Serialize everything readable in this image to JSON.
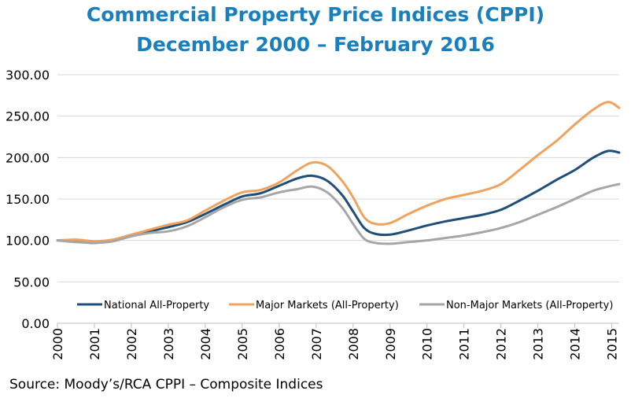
{
  "title_line1": "Commercial Property Price Indices (CPPI)",
  "title_line2": "December 2000 – February 2016",
  "source": "Source: Moody’s/RCA CPPI – Composite Indices",
  "chart_data": {
    "type": "line",
    "title": "Commercial Property Price Indices (CPPI) December 2000 – February 2016",
    "xlabel": "",
    "ylabel": "",
    "xlim": [
      2000,
      2015.2
    ],
    "ylim": [
      0,
      300
    ],
    "yticks": [
      "0.00",
      "50.00",
      "100.00",
      "150.00",
      "200.00",
      "250.00",
      "300.00"
    ],
    "yticks_values": [
      0,
      50,
      100,
      150,
      200,
      250,
      300
    ],
    "xticks": [
      "2000",
      "2001",
      "2002",
      "2003",
      "2004",
      "2005",
      "2006",
      "2007",
      "2008",
      "2009",
      "2010",
      "2011",
      "2012",
      "2013",
      "2014",
      "2015"
    ],
    "grid": "horizontal",
    "legend_position": "bottom-inside",
    "series": [
      {
        "name": "National All-Property",
        "color": "#1f4e79",
        "x": [
          2000,
          2000.5,
          2001,
          2001.5,
          2002,
          2002.5,
          2003,
          2003.5,
          2004,
          2004.5,
          2005,
          2005.5,
          2006,
          2006.5,
          2006.9,
          2007.3,
          2007.7,
          2008,
          2008.3,
          2008.6,
          2009,
          2009.5,
          2010,
          2010.5,
          2011,
          2011.5,
          2012,
          2012.5,
          2013,
          2013.5,
          2014,
          2014.5,
          2014.9,
          2015.2
        ],
        "values": [
          100,
          99,
          97,
          100,
          106,
          111,
          116,
          122,
          132,
          143,
          153,
          157,
          166,
          175,
          178,
          172,
          155,
          135,
          115,
          108,
          107,
          112,
          118,
          123,
          127,
          131,
          137,
          148,
          160,
          173,
          185,
          200,
          208,
          206
        ]
      },
      {
        "name": "Major Markets (All-Property)",
        "color": "#f0a35e",
        "x": [
          2000,
          2000.5,
          2001,
          2001.5,
          2002,
          2002.5,
          2003,
          2003.5,
          2004,
          2004.5,
          2005,
          2005.5,
          2006,
          2006.5,
          2006.9,
          2007.3,
          2007.7,
          2008,
          2008.3,
          2008.6,
          2009,
          2009.5,
          2010,
          2010.5,
          2011,
          2011.5,
          2012,
          2012.5,
          2013,
          2013.5,
          2014,
          2014.5,
          2014.9,
          2015.2
        ],
        "values": [
          100,
          101,
          99,
          101,
          107,
          113,
          119,
          124,
          136,
          148,
          158,
          161,
          170,
          185,
          194,
          190,
          172,
          152,
          128,
          120,
          121,
          132,
          142,
          150,
          155,
          160,
          168,
          185,
          203,
          220,
          240,
          258,
          267,
          260
        ]
      },
      {
        "name": "Non-Major Markets (All-Property)",
        "color": "#a6a6a6",
        "x": [
          2000,
          2000.5,
          2001,
          2001.5,
          2002,
          2002.5,
          2003,
          2003.5,
          2004,
          2004.5,
          2005,
          2005.5,
          2006,
          2006.5,
          2006.9,
          2007.3,
          2007.7,
          2008,
          2008.3,
          2008.6,
          2009,
          2009.5,
          2010,
          2010.5,
          2011,
          2011.5,
          2012,
          2012.5,
          2013,
          2013.5,
          2014,
          2014.5,
          2014.9,
          2015.2
        ],
        "values": [
          100,
          98,
          97,
          99,
          105,
          109,
          111,
          117,
          128,
          140,
          149,
          152,
          158,
          162,
          165,
          158,
          140,
          120,
          102,
          97,
          96,
          98,
          100,
          103,
          106,
          110,
          115,
          122,
          131,
          140,
          150,
          160,
          165,
          168
        ]
      }
    ]
  }
}
